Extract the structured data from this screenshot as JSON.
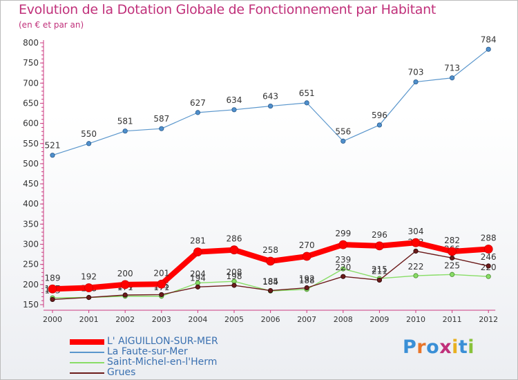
{
  "header": {
    "title": "Evolution de la Dotation Globale de Fonctionnement par Habitant",
    "subtitle": "(en € et par an)"
  },
  "logo_text": "Proxiti",
  "chart_data": {
    "type": "line",
    "title": "Evolution de la Dotation Globale de Fonctionnement par Habitant",
    "subtitle": "(en € et par an)",
    "categories": [
      "2000",
      "2001",
      "2002",
      "2003",
      "2004",
      "2005",
      "2006",
      "2007",
      "2008",
      "2009",
      "2010",
      "2011",
      "2012"
    ],
    "ylim": [
      150,
      800
    ],
    "yticks": [
      150,
      200,
      250,
      300,
      350,
      400,
      450,
      500,
      550,
      600,
      650,
      700,
      750,
      800
    ],
    "grid": false,
    "legend_position": "bottom-left",
    "series": [
      {
        "name": "L' AIGUILLON-SUR-MER",
        "color": "#ff0000",
        "values": [
          189,
          192,
          200,
          201,
          281,
          286,
          258,
          270,
          299,
          296,
          304,
          282,
          288
        ]
      },
      {
        "name": "La Faute-sur-Mer",
        "color": "#5a96cc",
        "values": [
          521,
          550,
          581,
          587,
          627,
          634,
          643,
          651,
          556,
          596,
          703,
          713,
          784
        ]
      },
      {
        "name": "Saint-Michel-en-l'Herm",
        "color": "#88dd66",
        "values": [
          167,
          168,
          171,
          171,
          204,
          208,
          184,
          188,
          239,
          215,
          222,
          225,
          220
        ]
      },
      {
        "name": "Grues",
        "color": "#6b1a1a",
        "values": [
          163,
          168,
          174,
          175,
          194,
          198,
          185,
          192,
          220,
          211,
          283,
          266,
          246
        ]
      }
    ]
  }
}
